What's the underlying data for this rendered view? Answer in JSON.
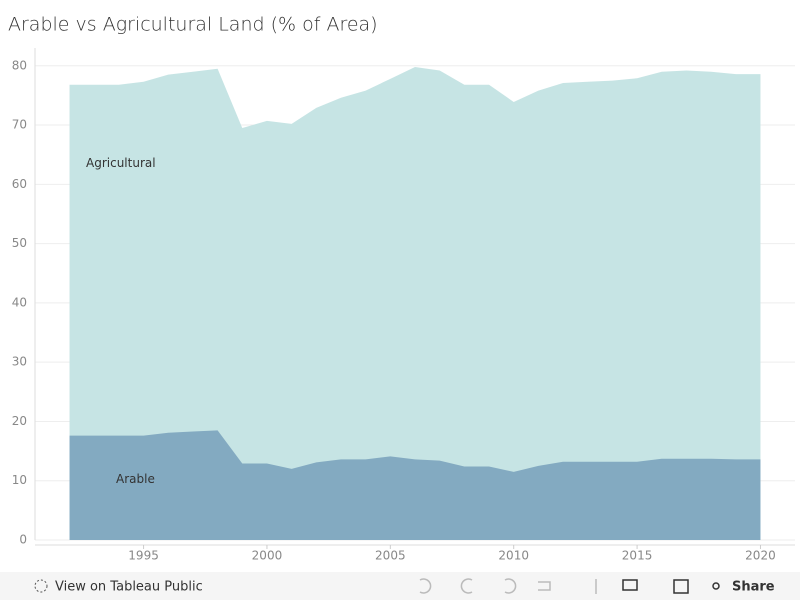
{
  "chart_data": {
    "type": "area",
    "title": "Arable vs Agricultural Land (% of Area)",
    "x": [
      1992,
      1993,
      1994,
      1995,
      1996,
      1997,
      1998,
      1999,
      2000,
      2001,
      2002,
      2003,
      2004,
      2005,
      2006,
      2007,
      2008,
      2009,
      2010,
      2011,
      2012,
      2013,
      2014,
      2015,
      2016,
      2017,
      2018,
      2019,
      2020
    ],
    "series": [
      {
        "name": "Agricultural",
        "color": "#c3e3e3",
        "values": [
          76.8,
          76.8,
          76.8,
          77.3,
          78.5,
          79.0,
          79.5,
          69.5,
          70.7,
          70.2,
          72.9,
          74.6,
          75.8,
          77.8,
          79.8,
          79.2,
          76.8,
          76.8,
          73.9,
          75.8,
          77.1,
          77.3,
          77.5,
          77.9,
          79.0,
          79.2,
          79.0,
          78.6,
          78.6
        ]
      },
      {
        "name": "Arable",
        "color": "#7fa6bf",
        "values": [
          17.6,
          17.6,
          17.6,
          17.6,
          18.1,
          18.3,
          18.5,
          12.9,
          12.9,
          12.0,
          13.1,
          13.6,
          13.6,
          14.1,
          13.6,
          13.4,
          12.4,
          12.4,
          11.5,
          12.5,
          13.2,
          13.2,
          13.2,
          13.2,
          13.7,
          13.7,
          13.7,
          13.6,
          13.6
        ]
      }
    ],
    "xlim": [
      1990.6,
      2021.4
    ],
    "xticks": [
      1995,
      2000,
      2005,
      2010,
      2015,
      2020
    ],
    "ylim": [
      0,
      83
    ],
    "yticks": [
      0,
      10,
      20,
      30,
      40,
      50,
      60,
      70,
      80
    ],
    "grid": true
  },
  "toolbar": {
    "view": "View on Tableau Public",
    "share": "Share"
  }
}
